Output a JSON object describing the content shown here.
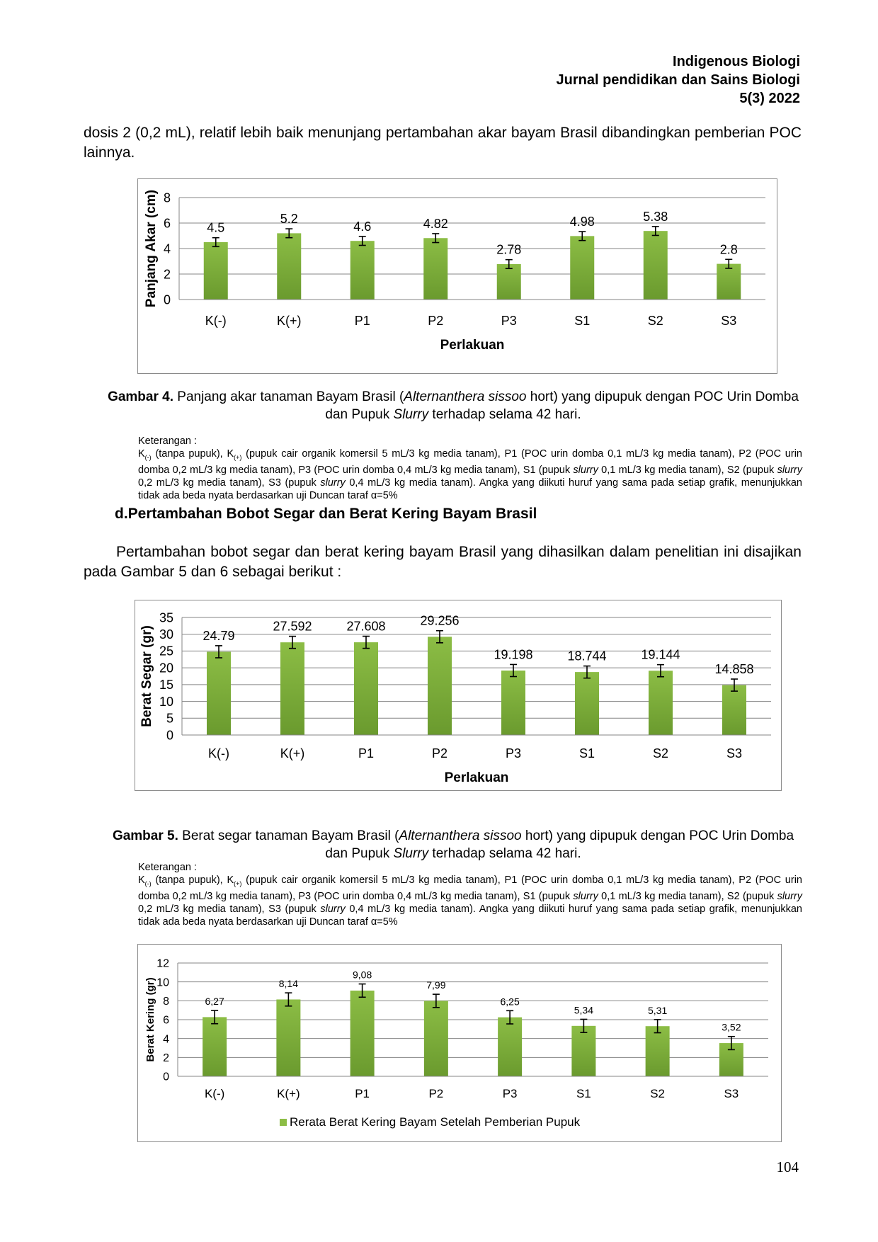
{
  "header": {
    "journal": "Indigenous Biologi",
    "subtitle": "Jurnal pendidikan dan Sains Biologi",
    "issue": "5(3) 2022"
  },
  "para1": "dosis 2 (0,2 mL), relatif lebih baik menunjang pertambahan akar bayam Brasil dibandingkan pemberian POC lainnya.",
  "fig4": {
    "label": "Gambar 4.",
    "caption_a": " Panjang akar tanaman Bayam Brasil (",
    "caption_species": "Alternanthera sissoo",
    "caption_b": " hort) yang dipupuk dengan POC Urin Domba dan Pupuk ",
    "caption_slurry": "Slurry",
    "caption_c": " terhadap selama 42 hari."
  },
  "note_block": {
    "title": "Keterangan :",
    "k_minus": "K",
    "k_minus_sub": "(-)",
    "k_minus_text": " (tanpa pupuk), K",
    "k_plus_sub": "(+)",
    "body1": " (pupuk cair organik komersil 5 mL/3 kg media tanam), P1 (POC urin domba 0,1 mL/3 kg media tanam), P2 (POC urin domba 0,2 mL/3 kg media tanam), P3 (POC urin domba 0,4 mL/3 kg media tanam), S1 (pupuk ",
    "slurry1": "slurry",
    "body2": " 0,1 mL/3 kg media tanam), S2 (pupuk ",
    "slurry2": "slurry",
    "body3": " 0,2 mL/3 kg media tanam), S3 (pupuk ",
    "slurry3": "slurry",
    "body4": " 0,4 mL/3 kg media tanam). Angka yang diikuti huruf yang sama pada setiap grafik, menunjukkan tidak ada beda nyata berdasarkan uji Duncan taraf α=5%"
  },
  "section_d": "d.Pertambahan Bobot Segar dan Berat Kering Bayam Brasil",
  "para2": "Pertambahan bobot segar dan berat kering bayam Brasil yang dihasilkan dalam penelitian ini disajikan pada Gambar 5 dan 6 sebagai berikut :",
  "fig5": {
    "label": "Gambar 5.",
    "caption_a": " Berat segar tanaman Bayam Brasil (",
    "caption_species": "Alternanthera sissoo",
    "caption_b": " hort) yang dipupuk dengan POC Urin Domba dan Pupuk ",
    "caption_slurry": "Slurry",
    "caption_c": " terhadap selama 42 hari."
  },
  "page_number": "104",
  "colors": {
    "bar": "#8cbd45",
    "bar_dark": "#6a9a2e",
    "grid": "#868686"
  },
  "chart_data": [
    {
      "type": "bar",
      "categories": [
        "K(-)",
        "K(+)",
        "P1",
        "P2",
        "P3",
        "S1",
        "S2",
        "S3"
      ],
      "values": [
        4.5,
        5.2,
        4.6,
        4.82,
        2.78,
        4.98,
        5.38,
        2.8
      ],
      "value_labels": [
        "4.5",
        "5.2",
        "4.6",
        "4.82",
        "2.78",
        "4.98",
        "5.38",
        "2.8"
      ],
      "error": 0.35,
      "xlabel": "Perlakuan",
      "ylabel": "Panjang Akar (cm)",
      "ylim": [
        0,
        8
      ],
      "yticks": [
        0,
        2,
        4,
        6,
        8
      ],
      "grid": true
    },
    {
      "type": "bar",
      "categories": [
        "K(-)",
        "K(+)",
        "P1",
        "P2",
        "P3",
        "S1",
        "S2",
        "S3"
      ],
      "values": [
        24.79,
        27.592,
        27.608,
        29.256,
        19.198,
        18.744,
        19.144,
        14.858
      ],
      "value_labels": [
        "24.79",
        "27.592",
        "27.608",
        "29.256",
        "19.198",
        "18.744",
        "19.144",
        "14.858"
      ],
      "error": 1.8,
      "xlabel": "Perlakuan",
      "ylabel": "Berat Segar (gr)",
      "ylim": [
        0,
        35
      ],
      "yticks": [
        0,
        5,
        10,
        15,
        20,
        25,
        30,
        35
      ],
      "grid": true
    },
    {
      "type": "bar",
      "categories": [
        "K(-)",
        "K(+)",
        "P1",
        "P2",
        "P3",
        "S1",
        "S2",
        "S3"
      ],
      "values": [
        6.27,
        8.14,
        9.08,
        7.99,
        6.25,
        5.34,
        5.31,
        3.52
      ],
      "value_labels": [
        "6,27",
        "8,14",
        "9,08",
        "7,99",
        "6,25",
        "5,34",
        "5,31",
        "3,52"
      ],
      "error": 0.7,
      "xlabel": "",
      "ylabel": "Berat Kering (gr)",
      "ylim": [
        0,
        12
      ],
      "yticks": [
        0,
        2,
        4,
        6,
        8,
        10,
        12
      ],
      "grid": true,
      "legend": {
        "placement": "bottom",
        "series_name": "Rerata Berat Kering Bayam Setelah Pemberian Pupuk"
      }
    }
  ]
}
